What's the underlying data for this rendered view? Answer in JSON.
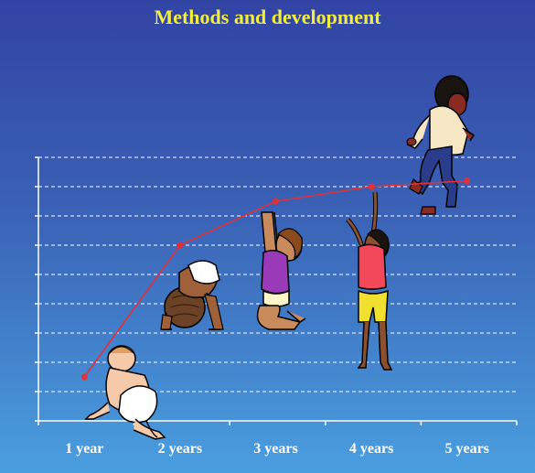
{
  "title": "Methods and development",
  "colors": {
    "title": "#f2ee3c",
    "line": "#e0303a",
    "grid": "#ffffff",
    "bg_top": "#3243a4",
    "bg_bottom": "#4a9fe0"
  },
  "figures": [
    {
      "name": "baby-crawling-on-belly"
    },
    {
      "name": "baby-on-hands-and-knees"
    },
    {
      "name": "toddler-reaching-up-kneeling"
    },
    {
      "name": "child-standing-reaching-up"
    },
    {
      "name": "child-running"
    }
  ],
  "chart_data": {
    "type": "line",
    "title": "Methods and development",
    "categories": [
      "1 year",
      "2 years",
      "3 years",
      "4 years",
      "5 years"
    ],
    "values": [
      1.5,
      6.0,
      7.5,
      8.0,
      8.2
    ],
    "ylim": [
      0,
      9
    ],
    "grid": true,
    "grid_style": "dashed",
    "legend": "none"
  }
}
